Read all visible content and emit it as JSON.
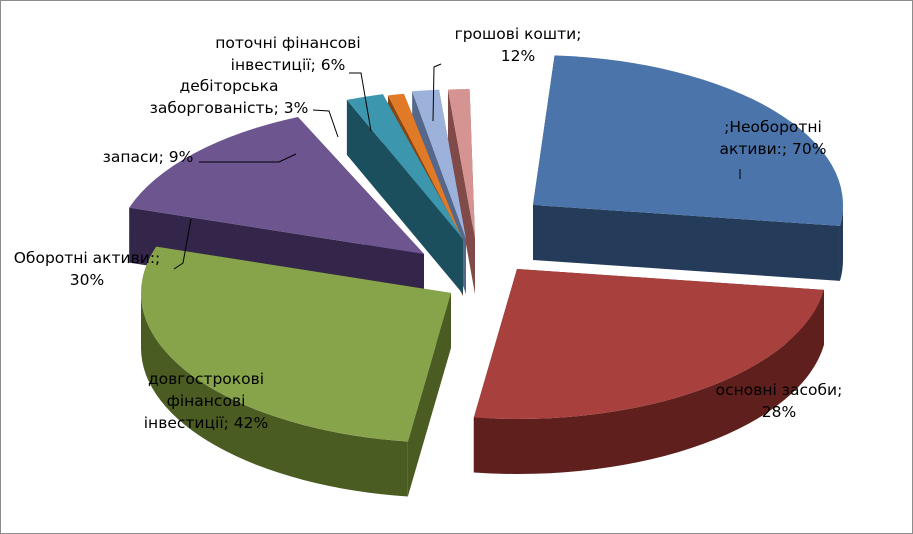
{
  "chart_data": {
    "type": "pie",
    "title": "",
    "slices": [
      {
        "lines": [
          ";Необоротні",
          "активи:; 70%"
        ],
        "value": 70,
        "percent": "70%",
        "top": "#4a74aa",
        "dark": "#243b5a"
      },
      {
        "lines": [
          "основні засоби;",
          "28%"
        ],
        "value": 28,
        "percent": "28%",
        "top": "#a8413e",
        "dark": "#5e1f1d"
      },
      {
        "lines": [
          "довгострокові",
          "фінансові",
          "інвестиції; 42%"
        ],
        "value": 42,
        "percent": "42%",
        "top": "#88a44a",
        "dark": "#4a5c22"
      },
      {
        "lines": [
          "Оборотні активи:;",
          "30%"
        ],
        "value": 30,
        "percent": "30%",
        "top": "#6d5690",
        "dark": "#34264b"
      },
      {
        "lines": [
          "запаси; 9%"
        ],
        "value": 9,
        "percent": "9%",
        "top": "#3c96ad",
        "dark": "#1b4f5d"
      },
      {
        "lines": [
          "дебіторська",
          "заборгованість; 3%"
        ],
        "value": 3,
        "percent": "3%",
        "top": "#e07a26",
        "dark": "#8a440f"
      },
      {
        "lines": [
          "поточні фінансові",
          "інвестиції; 6%"
        ],
        "value": 6,
        "percent": "6%",
        "top": "#9db2da",
        "dark": "#55688c"
      },
      {
        "lines": [
          "грошові кошти;",
          "12%"
        ],
        "value": 12,
        "percent": "12%",
        "top": "#d59491",
        "dark": "#7f4a48"
      }
    ]
  }
}
